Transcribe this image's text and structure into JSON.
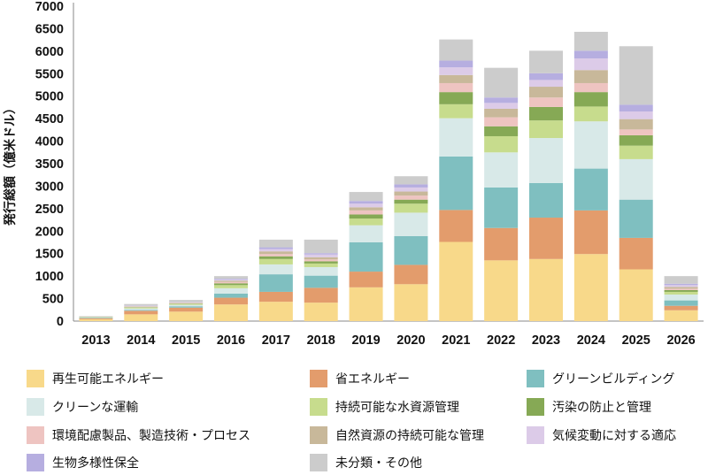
{
  "chart_data": {
    "type": "bar",
    "stacked": true,
    "title": "",
    "xlabel": "",
    "ylabel": "発行総額（億米ドル）",
    "ylim": [
      0,
      7000
    ],
    "yticks": [
      0,
      500,
      1000,
      1500,
      2000,
      2500,
      3000,
      3500,
      4000,
      4500,
      5000,
      5500,
      6000,
      6500,
      7000
    ],
    "grid": false,
    "legend_position": "bottom",
    "categories": [
      "2013",
      "2014",
      "2015",
      "2016",
      "2017",
      "2018",
      "2019",
      "2020",
      "2021",
      "2022",
      "2023",
      "2024",
      "2025",
      "2026"
    ],
    "series": [
      {
        "name": "再生可能エネルギー",
        "color": "#f8d98a",
        "values": [
          40,
          150,
          210,
          370,
          430,
          410,
          750,
          820,
          1760,
          1350,
          1380,
          1490,
          1150,
          240
        ]
      },
      {
        "name": "省エネルギー",
        "color": "#e39c6c",
        "values": [
          20,
          80,
          90,
          150,
          220,
          330,
          350,
          430,
          710,
          720,
          920,
          970,
          700,
          100
        ]
      },
      {
        "name": "グリーンビルディング",
        "color": "#7fbfc0",
        "values": [
          10,
          20,
          30,
          90,
          390,
          270,
          650,
          640,
          1190,
          900,
          770,
          930,
          850,
          120
        ]
      },
      {
        "name": "クリーンな運輸",
        "color": "#d8e9e8",
        "values": [
          5,
          30,
          30,
          120,
          220,
          190,
          380,
          520,
          850,
          780,
          1000,
          1050,
          900,
          130
        ]
      },
      {
        "name": "持続可能な水資源管理",
        "color": "#c7dc8d",
        "values": [
          10,
          20,
          20,
          70,
          120,
          80,
          150,
          200,
          310,
          360,
          390,
          330,
          300,
          60
        ]
      },
      {
        "name": "汚染の防止と管理",
        "color": "#86a955",
        "values": [
          5,
          10,
          10,
          40,
          60,
          50,
          90,
          90,
          270,
          220,
          300,
          320,
          230,
          40
        ]
      },
      {
        "name": "環境配慮製品、製造技術・プロセス",
        "color": "#eec4c1",
        "values": [
          3,
          10,
          10,
          30,
          50,
          40,
          90,
          90,
          200,
          200,
          210,
          200,
          130,
          30
        ]
      },
      {
        "name": "自然資源の持続可能な管理",
        "color": "#c8b89a",
        "values": [
          3,
          10,
          10,
          30,
          60,
          50,
          70,
          90,
          180,
          190,
          240,
          290,
          230,
          40
        ]
      },
      {
        "name": "気候変動に対する適応",
        "color": "#dccbe8",
        "values": [
          2,
          10,
          10,
          20,
          50,
          60,
          80,
          90,
          170,
          130,
          150,
          260,
          170,
          40
        ]
      },
      {
        "name": "生物多様性保全",
        "color": "#b6aee0",
        "values": [
          2,
          5,
          5,
          20,
          40,
          30,
          60,
          70,
          150,
          120,
          150,
          170,
          150,
          30
        ]
      },
      {
        "name": "未分類・その他",
        "color": "#cccccc",
        "values": [
          10,
          35,
          45,
          60,
          170,
          300,
          200,
          180,
          470,
          660,
          500,
          420,
          1300,
          170
        ]
      }
    ]
  }
}
